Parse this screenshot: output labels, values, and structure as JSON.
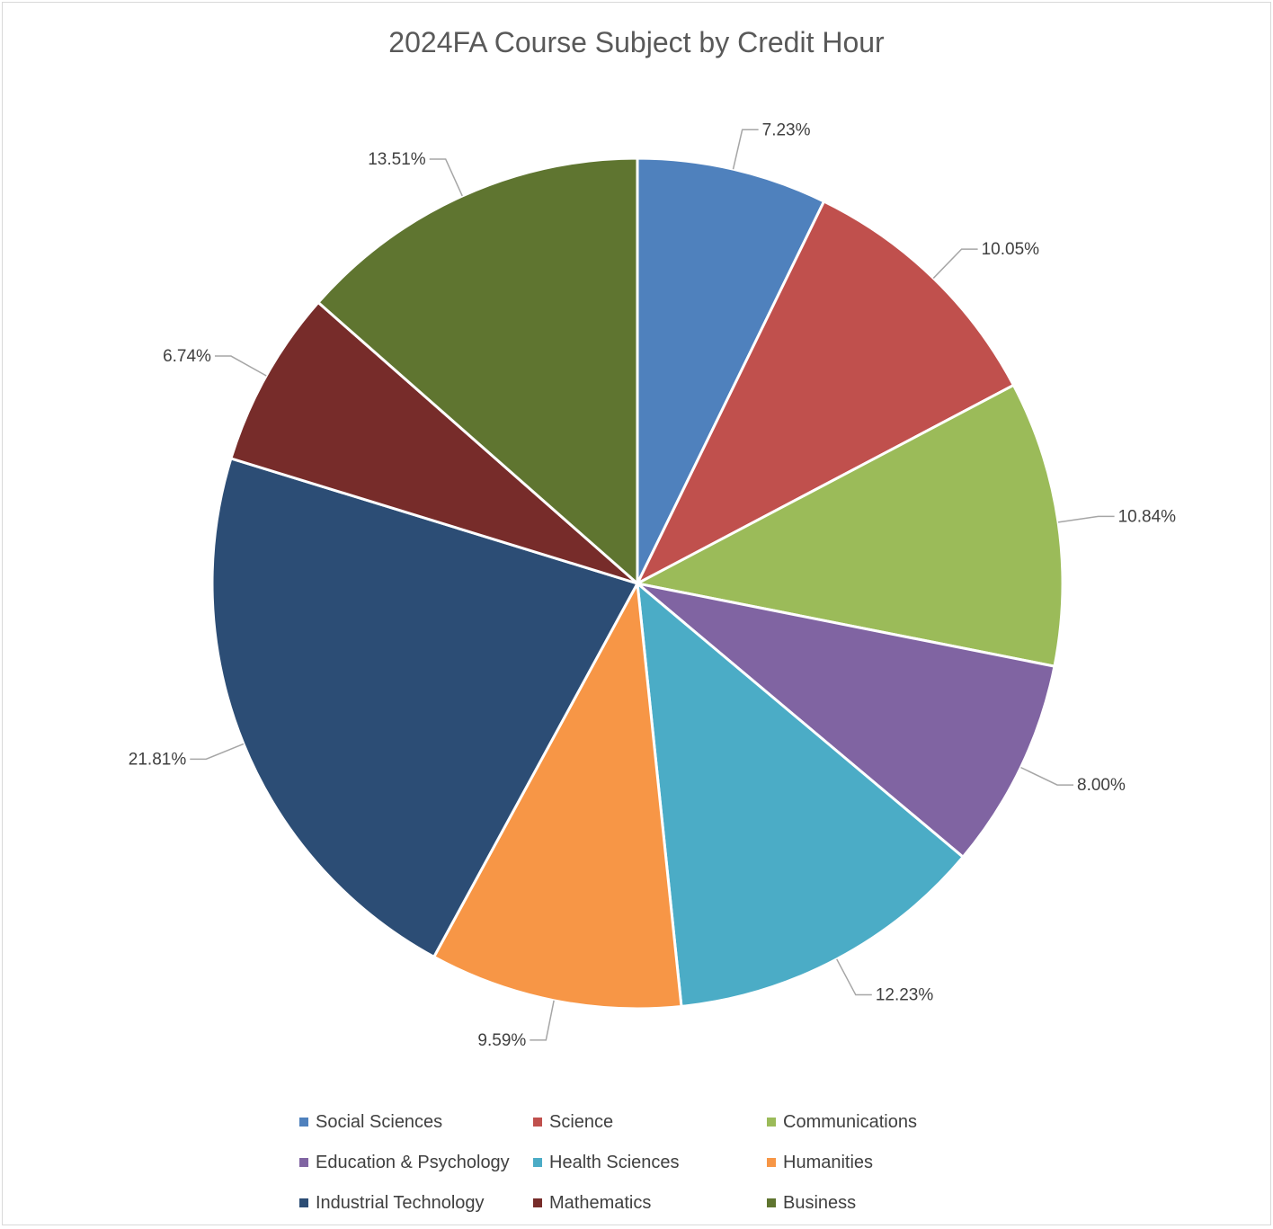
{
  "chart_data": {
    "type": "pie",
    "title": "2024FA Course Subject by Credit Hour",
    "legend_position": "bottom",
    "slices": [
      {
        "name": "Social Sciences",
        "value": 7.23,
        "label": "7.23%",
        "color": "#4F81BD"
      },
      {
        "name": "Science",
        "value": 10.05,
        "label": "10.05%",
        "color": "#C0504D"
      },
      {
        "name": "Communications",
        "value": 10.84,
        "label": "10.84%",
        "color": "#9BBB59"
      },
      {
        "name": "Education & Psychology",
        "value": 8.0,
        "label": "8.00%",
        "color": "#8064A2"
      },
      {
        "name": "Health Sciences",
        "value": 12.23,
        "label": "12.23%",
        "color": "#4BACC6"
      },
      {
        "name": "Humanities",
        "value": 9.59,
        "label": "9.59%",
        "color": "#F79646"
      },
      {
        "name": "Industrial Technology",
        "value": 21.81,
        "label": "21.81%",
        "color": "#2C4D75"
      },
      {
        "name": "Mathematics",
        "value": 6.74,
        "label": "6.74%",
        "color": "#772C2A"
      },
      {
        "name": "Business",
        "value": 13.51,
        "label": "13.51%",
        "color": "#5F7530"
      }
    ]
  }
}
